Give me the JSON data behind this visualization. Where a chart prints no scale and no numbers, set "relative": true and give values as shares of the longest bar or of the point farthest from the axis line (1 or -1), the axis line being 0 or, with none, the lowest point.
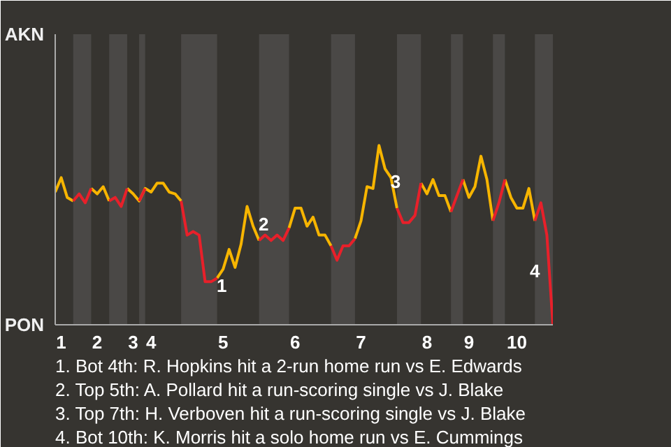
{
  "chart_data": {
    "type": "line",
    "relative": true,
    "categories": [
      null,
      "1",
      null,
      null,
      null,
      null,
      null,
      "2",
      null,
      null,
      null,
      null,
      null,
      "3",
      null,
      null,
      "4",
      null,
      null,
      null,
      null,
      null,
      null,
      null,
      null,
      null,
      null,
      null,
      "5",
      null,
      null,
      null,
      null,
      null,
      null,
      null,
      null,
      null,
      null,
      null,
      "6",
      null,
      null,
      null,
      null,
      null,
      null,
      null,
      null,
      null,
      null,
      "7",
      null,
      null,
      null,
      null,
      null,
      null,
      null,
      null,
      null,
      null,
      "8",
      null,
      null,
      null,
      null,
      null,
      null,
      "9",
      null,
      null,
      null,
      null,
      null,
      null,
      null,
      "10",
      null,
      null,
      null,
      null,
      null,
      null
    ],
    "series": [
      {
        "color": "#f7b500",
        "values": [
          0.74,
          0.82,
          0.71,
          0.69,
          null,
          null,
          0.76,
          0.73,
          0.77,
          0.69,
          null,
          null,
          0.76,
          0.73,
          0.69,
          0.76,
          0.74,
          0.79,
          0.79,
          0.74,
          0.73,
          0.69,
          null,
          null,
          null,
          null,
          null,
          0.26,
          0.31,
          0.42,
          0.32,
          0.45,
          0.66,
          0.55,
          0.47,
          null,
          null,
          null,
          null,
          0.54,
          0.65,
          0.65,
          0.55,
          0.6,
          0.5,
          0.5,
          0.44,
          null,
          null,
          null,
          0.48,
          0.58,
          0.77,
          0.76,
          1,
          0.87,
          0.82,
          0.65,
          null,
          null,
          null,
          0.79,
          0.73,
          0.81,
          0.72,
          0.72,
          0.63,
          null,
          0.81,
          0.71,
          0.77,
          0.94,
          0.81,
          0.58,
          null,
          0.81,
          0.71,
          0.65,
          0.65,
          0.76,
          0.58,
          null,
          null,
          null
        ]
      },
      {
        "color": "#e8202a",
        "values": [
          null,
          null,
          null,
          0.69,
          0.73,
          0.68,
          0.76,
          null,
          null,
          0.69,
          0.71,
          0.66,
          0.76,
          null,
          0.69,
          0.76,
          null,
          null,
          null,
          null,
          null,
          0.69,
          0.5,
          0.52,
          0.5,
          0.24,
          0.24,
          0.26,
          null,
          null,
          null,
          null,
          null,
          null,
          0.47,
          0.5,
          0.47,
          0.5,
          0.47,
          0.54,
          null,
          null,
          null,
          null,
          null,
          null,
          0.44,
          0.36,
          0.44,
          0.44,
          0.48,
          null,
          null,
          null,
          null,
          null,
          null,
          0.65,
          0.57,
          0.57,
          0.61,
          0.79,
          null,
          null,
          null,
          null,
          0.63,
          0.72,
          0.81,
          null,
          null,
          null,
          null,
          0.58,
          0.68,
          0.81,
          null,
          null,
          null,
          null,
          0.58,
          0.68,
          0.5,
          0
        ]
      }
    ],
    "annotations": [
      "AKN",
      "PON",
      "1",
      "2",
      "3",
      "4",
      "1. Bot 4th: R. Hopkins hit a 2-run home run vs E. Edwards",
      "2. Top 5th: A. Pollard hit a run-scoring single vs J. Blake",
      "3. Top 7th: H. Verboven hit a run-scoring single vs J. Blake",
      "4. Bot 10th: K. Morris hit a solo home run vs E. Cummings"
    ],
    "line_style": "solid",
    "marker": "none"
  }
}
